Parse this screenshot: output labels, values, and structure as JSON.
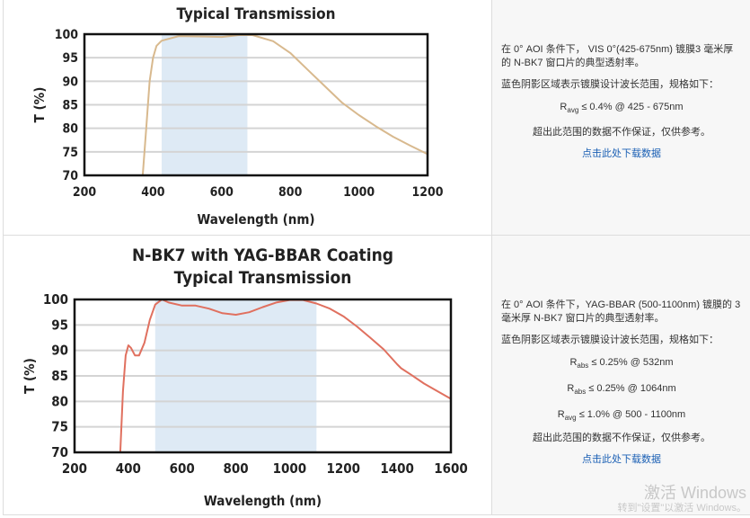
{
  "rows": [
    {
      "description": "在 0° AOI 条件下， VIS 0°(425-675nm) 镀膜3 毫米厚的 N-BK7 窗口片的典型透射率。",
      "shading_note": "蓝色阴影区域表示镀膜设计波长范围，规格如下：",
      "specs": [
        {
          "R": "R",
          "sub": "avg",
          "text": "≤ 0.4% @ 425 - 675nm"
        }
      ],
      "disclaimer": "超出此范围的数据不作保证，仅供参考。",
      "download_link": "点击此处下载数据"
    },
    {
      "description": "在 0° AOI 条件下，YAG-BBAR (500-1100nm) 镀膜的 3 毫米厚 N-BK7 窗口片的典型透射率。",
      "shading_note": "蓝色阴影区域表示镀膜设计波长范围，规格如下：",
      "specs": [
        {
          "R": "R",
          "sub": "abs",
          "text": "≤ 0.25% @ 532nm"
        },
        {
          "R": "R",
          "sub": "abs",
          "text": "≤ 0.25% @ 1064nm"
        },
        {
          "R": "R",
          "sub": "avg",
          "text": "≤ 1.0% @ 500 - 1100nm"
        }
      ],
      "disclaimer": "超出此范围的数据不作保证，仅供参考。",
      "download_link": "点击此处下载数据"
    }
  ],
  "watermark": {
    "line1": "激活 Windows",
    "line2": "转到\"设置\"以激活 Windows。"
  },
  "chart_data": [
    {
      "type": "line",
      "title": "Typical Transmission",
      "xlabel": "Wavelength (nm)",
      "ylabel": "T (%)",
      "xlim": [
        200,
        1200
      ],
      "ylim": [
        70,
        100
      ],
      "xticks": [
        200,
        400,
        600,
        800,
        1000,
        1200
      ],
      "yticks": [
        70,
        75,
        80,
        85,
        90,
        95,
        100
      ],
      "grid": "horizontal",
      "shaded_band": [
        425,
        675
      ],
      "colors": {
        "line": "#d8b98e",
        "band": "#deeaf5"
      },
      "x": [
        370,
        380,
        390,
        400,
        410,
        425,
        475,
        550,
        600,
        650,
        690,
        750,
        800,
        850,
        900,
        950,
        1000,
        1050,
        1100,
        1150,
        1200
      ],
      "y": [
        70,
        80,
        90,
        95,
        97.5,
        98.6,
        99.6,
        99.5,
        99.4,
        99.8,
        99.8,
        98.5,
        96,
        92.5,
        89,
        85.5,
        82.8,
        80.4,
        78.2,
        76.3,
        74.5
      ]
    },
    {
      "type": "line",
      "title": "N-BK7 with YAG-BBAR Coating",
      "subtitle": "Typical Transmission",
      "xlabel": "Wavelength (nm)",
      "ylabel": "T (%)",
      "xlim": [
        200,
        1600
      ],
      "ylim": [
        70,
        100
      ],
      "xticks": [
        200,
        400,
        600,
        800,
        1000,
        1200,
        1400,
        1600
      ],
      "yticks": [
        70,
        75,
        80,
        85,
        90,
        95,
        100
      ],
      "grid": "horizontal",
      "shaded_band": [
        500,
        1100
      ],
      "colors": {
        "line": "#e0705f",
        "band": "#deeaf5"
      },
      "x": [
        370,
        380,
        390,
        400,
        410,
        425,
        440,
        460,
        480,
        500,
        525,
        550,
        600,
        650,
        700,
        750,
        800,
        850,
        900,
        950,
        1000,
        1050,
        1100,
        1150,
        1200,
        1250,
        1300,
        1350,
        1400,
        1415,
        1450,
        1500,
        1550,
        1600
      ],
      "y": [
        70,
        82,
        89,
        91,
        90.5,
        89,
        89,
        91.5,
        96,
        99,
        100,
        99.4,
        98.8,
        98.8,
        98.2,
        97.3,
        97,
        97.5,
        98.5,
        99.4,
        99.9,
        99.9,
        99.2,
        98.2,
        96.7,
        94.7,
        92.5,
        90.2,
        87.3,
        86.5,
        85.3,
        83.5,
        82,
        80.5
      ]
    }
  ]
}
